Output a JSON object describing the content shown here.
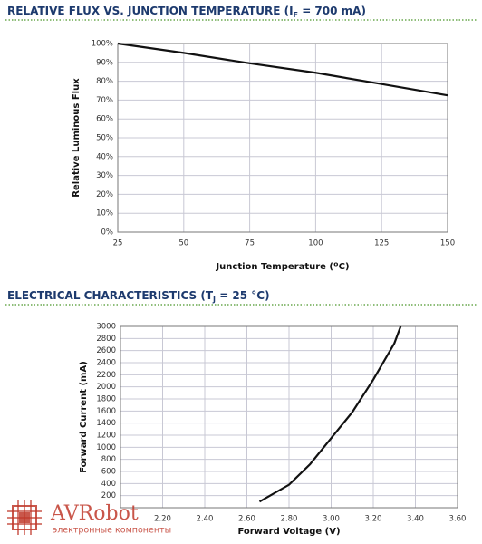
{
  "chart_data": [
    {
      "type": "line",
      "title_parts": [
        "RELATIVE FLUX VS. JUNCTION TEMPERATURE (I",
        "F",
        " = 700 mA)"
      ],
      "xlabel": "Junction Temperature (ºC)",
      "ylabel": "Relative Luminous Flux",
      "x": [
        25,
        50,
        75,
        100,
        125,
        150
      ],
      "values": [
        100,
        95,
        89.5,
        84.5,
        78.5,
        72.5
      ],
      "color": "#111111",
      "xlim": [
        25,
        150
      ],
      "ylim": [
        0,
        100
      ],
      "xticks": [
        25,
        50,
        75,
        100,
        125,
        150
      ],
      "yticks": [
        {
          "value": 0,
          "label": "0%"
        },
        {
          "value": 10,
          "label": "10%"
        },
        {
          "value": 20,
          "label": "20%"
        },
        {
          "value": 30,
          "label": "30%"
        },
        {
          "value": 40,
          "label": "40%"
        },
        {
          "value": 50,
          "label": "50%"
        },
        {
          "value": 60,
          "label": "60%"
        },
        {
          "value": 70,
          "label": "70%"
        },
        {
          "value": 80,
          "label": "80%"
        },
        {
          "value": 90,
          "label": "90%"
        },
        {
          "value": 100,
          "label": "100%"
        }
      ],
      "grid": true
    },
    {
      "type": "line",
      "title_parts": [
        "ELECTRICAL CHARACTERISTICS (T",
        "J",
        " = 25 °C)"
      ],
      "xlabel": "Forward Voltage (V)",
      "ylabel": "Forward Current (mA)",
      "x": [
        2.66,
        2.8,
        2.9,
        3.0,
        3.1,
        3.2,
        3.3,
        3.33
      ],
      "values": [
        100,
        380,
        720,
        1150,
        1580,
        2120,
        2720,
        3000
      ],
      "color": "#111111",
      "xlim": [
        2.0,
        3.6
      ],
      "ylim": [
        0,
        3000
      ],
      "xticks": [
        {
          "value": 2.2,
          "label": "2.20"
        },
        {
          "value": 2.4,
          "label": "2.40"
        },
        {
          "value": 2.6,
          "label": "2.60"
        },
        {
          "value": 2.8,
          "label": "2.80"
        },
        {
          "value": 3.0,
          "label": "3.00"
        },
        {
          "value": 3.2,
          "label": "3.20"
        },
        {
          "value": 3.4,
          "label": "3.40"
        },
        {
          "value": 3.6,
          "label": "3.60"
        }
      ],
      "yticks": [
        200,
        400,
        600,
        800,
        1000,
        1200,
        1400,
        1600,
        1800,
        2000,
        2200,
        2400,
        2600,
        2800,
        3000
      ],
      "grid": true
    }
  ],
  "watermark": {
    "name": "AVRobot",
    "tagline": "электронные компоненты"
  }
}
